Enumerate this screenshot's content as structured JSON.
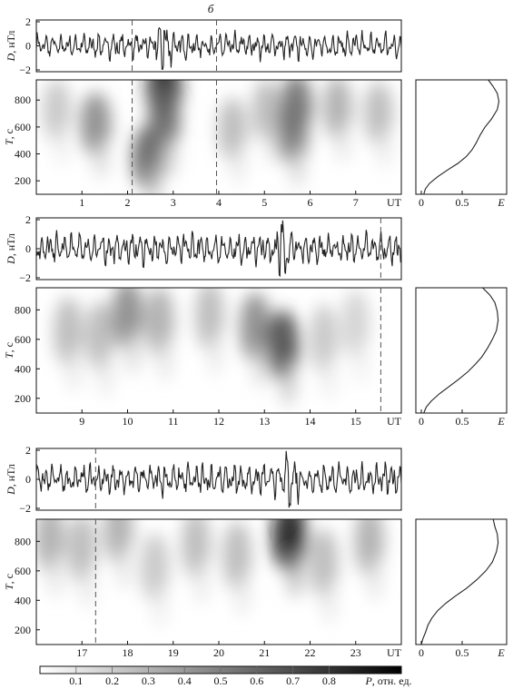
{
  "figure_label": "б",
  "colors": {
    "line": "#222222",
    "axis": "#111111",
    "dash": "#555555"
  },
  "colorbar": {
    "label": "P, отн. ед.",
    "ticks": [
      0.1,
      0.2,
      0.3,
      0.4,
      0.5,
      0.6,
      0.7,
      0.8
    ],
    "range": [
      0,
      1
    ],
    "colormap": "white-to-black"
  },
  "chart_data": [
    {
      "type": "line",
      "panel": "1-signal",
      "ylabel": "D, нТл",
      "ylim": [
        -2,
        2
      ],
      "yticks": [
        -2,
        0,
        2
      ],
      "xlim": [
        0,
        8
      ],
      "series": [
        {
          "name": "",
          "description_values_D_nT": [
            0.4,
            -0.6,
            0.9,
            -0.8,
            0.5,
            -0.3,
            1.1,
            -1.2,
            0.7,
            -0.5,
            0.3,
            0.8,
            -0.9,
            0.6,
            -1.0,
            1.8,
            -2.0,
            1.2,
            -0.8,
            0.6,
            -0.4,
            0.9,
            -0.7,
            0.5,
            -0.6,
            1.1,
            -0.9,
            0.4,
            -0.3,
            0.7,
            -0.8,
            0.6
          ]
        }
      ],
      "events_UT": [
        2.1,
        3.95
      ]
    },
    {
      "type": "heatmap",
      "panel": "1-spectrum",
      "ylabel": "T, с",
      "xlabel": "UT",
      "xlim": [
        0,
        8
      ],
      "ylim": [
        100,
        950
      ],
      "xticks": [
        1,
        2,
        3,
        4,
        5,
        6,
        7
      ],
      "yticks": [
        200,
        400,
        600,
        800
      ],
      "events_UT": [
        2.1,
        3.95
      ],
      "blobs": [
        {
          "UT": 1.3,
          "T": 620,
          "P": 0.5
        },
        {
          "UT": 0.45,
          "T": 720,
          "P": 0.25
        },
        {
          "UT": 2.45,
          "T": 370,
          "P": 0.65
        },
        {
          "UT": 2.8,
          "T": 880,
          "P": 0.9
        },
        {
          "UT": 2.8,
          "T": 640,
          "P": 0.6
        },
        {
          "UT": 4.3,
          "T": 580,
          "P": 0.3
        },
        {
          "UT": 5.05,
          "T": 720,
          "P": 0.3
        },
        {
          "UT": 5.7,
          "T": 760,
          "P": 0.6
        },
        {
          "UT": 5.6,
          "T": 560,
          "P": 0.55
        },
        {
          "UT": 6.6,
          "T": 740,
          "P": 0.35
        },
        {
          "UT": 7.5,
          "T": 700,
          "P": 0.3
        }
      ]
    },
    {
      "type": "line",
      "panel": "1-energy",
      "xlabel": "E",
      "xlim": [
        0,
        1
      ],
      "xticks": [
        0,
        0.5
      ],
      "ylim": [
        100,
        950
      ],
      "x": [
        0.03,
        0.05,
        0.1,
        0.2,
        0.32,
        0.45,
        0.55,
        0.62,
        0.67,
        0.72,
        0.78,
        0.86,
        0.93,
        0.95,
        0.93,
        0.88,
        0.82
      ],
      "y": [
        100,
        140,
        180,
        230,
        280,
        330,
        380,
        430,
        480,
        540,
        600,
        660,
        730,
        790,
        850,
        900,
        950
      ]
    },
    {
      "type": "line",
      "panel": "2-signal",
      "ylabel": "D, нТл",
      "ylim": [
        -2,
        2
      ],
      "yticks": [
        -2,
        0,
        2
      ],
      "xlim": [
        8,
        16
      ],
      "events_UT": [
        15.55
      ]
    },
    {
      "type": "heatmap",
      "panel": "2-spectrum",
      "ylabel": "T, с",
      "xlabel": "UT",
      "xlim": [
        8,
        16
      ],
      "ylim": [
        100,
        950
      ],
      "xticks": [
        9,
        10,
        11,
        12,
        13,
        14,
        15
      ],
      "yticks": [
        200,
        400,
        600,
        800
      ],
      "events_UT": [
        15.55
      ],
      "blobs": [
        {
          "UT": 8.7,
          "T": 650,
          "P": 0.3
        },
        {
          "UT": 9.4,
          "T": 620,
          "P": 0.3
        },
        {
          "UT": 10.0,
          "T": 770,
          "P": 0.5
        },
        {
          "UT": 10.7,
          "T": 720,
          "P": 0.35
        },
        {
          "UT": 11.8,
          "T": 760,
          "P": 0.3
        },
        {
          "UT": 12.8,
          "T": 680,
          "P": 0.5
        },
        {
          "UT": 13.4,
          "T": 560,
          "P": 0.75
        },
        {
          "UT": 14.3,
          "T": 600,
          "P": 0.25
        },
        {
          "UT": 15.0,
          "T": 700,
          "P": 0.2
        }
      ]
    },
    {
      "type": "line",
      "panel": "2-energy",
      "xlabel": "E",
      "xlim": [
        0,
        1
      ],
      "xticks": [
        0,
        0.5
      ],
      "ylim": [
        100,
        950
      ],
      "x": [
        0.03,
        0.06,
        0.12,
        0.22,
        0.34,
        0.46,
        0.57,
        0.66,
        0.74,
        0.81,
        0.87,
        0.92,
        0.94,
        0.93,
        0.9,
        0.84,
        0.75
      ],
      "y": [
        100,
        140,
        180,
        230,
        280,
        330,
        380,
        430,
        480,
        540,
        600,
        660,
        730,
        790,
        850,
        900,
        950
      ]
    },
    {
      "type": "line",
      "panel": "3-signal",
      "ylabel": "D, нТл",
      "ylim": [
        -2,
        2
      ],
      "yticks": [
        -2,
        0,
        2
      ],
      "xlim": [
        16,
        24
      ],
      "events_UT": [
        17.3
      ]
    },
    {
      "type": "heatmap",
      "panel": "3-spectrum",
      "ylabel": "T, с",
      "xlabel": "UT",
      "xlim": [
        16,
        24
      ],
      "ylim": [
        100,
        950
      ],
      "xticks": [
        17,
        18,
        19,
        20,
        21,
        22,
        23
      ],
      "yticks": [
        200,
        400,
        600,
        800
      ],
      "events_UT": [
        17.3
      ],
      "blobs": [
        {
          "UT": 16.3,
          "T": 820,
          "P": 0.35
        },
        {
          "UT": 17.0,
          "T": 750,
          "P": 0.3
        },
        {
          "UT": 17.8,
          "T": 880,
          "P": 0.35
        },
        {
          "UT": 18.6,
          "T": 620,
          "P": 0.25
        },
        {
          "UT": 19.5,
          "T": 780,
          "P": 0.3
        },
        {
          "UT": 20.4,
          "T": 700,
          "P": 0.3
        },
        {
          "UT": 21.55,
          "T": 830,
          "P": 0.95
        },
        {
          "UT": 22.3,
          "T": 650,
          "P": 0.3
        },
        {
          "UT": 23.3,
          "T": 800,
          "P": 0.35
        }
      ]
    },
    {
      "type": "line",
      "panel": "3-energy",
      "xlabel": "E",
      "xlim": [
        0,
        1
      ],
      "xticks": [
        0,
        0.5
      ],
      "ylim": [
        100,
        950
      ],
      "x": [
        0.0,
        0.02,
        0.05,
        0.08,
        0.13,
        0.2,
        0.3,
        0.42,
        0.55,
        0.68,
        0.79,
        0.87,
        0.92,
        0.94,
        0.93,
        0.9,
        0.88
      ],
      "y": [
        100,
        140,
        180,
        230,
        280,
        330,
        380,
        430,
        480,
        540,
        600,
        660,
        730,
        790,
        850,
        900,
        950
      ]
    }
  ]
}
